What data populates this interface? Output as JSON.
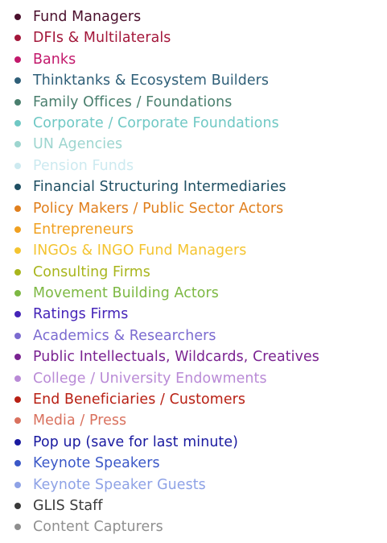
{
  "legend": {
    "items": [
      {
        "label": "Fund Managers",
        "color": "#4a0f2c"
      },
      {
        "label": "DFIs & Multilaterals",
        "color": "#a3173a"
      },
      {
        "label": "Banks",
        "color": "#c2186b"
      },
      {
        "label": "Thinktanks & Ecosystem Builders",
        "color": "#2f5f78"
      },
      {
        "label": "Family Offices / Foundations",
        "color": "#4a7f6e"
      },
      {
        "label": "Corporate / Corporate Foundations",
        "color": "#6fc8c4"
      },
      {
        "label": "UN Agencies",
        "color": "#9dd5cf"
      },
      {
        "label": "Pension Funds",
        "color": "#cdeaf0"
      },
      {
        "label": "Financial Structuring Intermediaries",
        "color": "#1f4f63"
      },
      {
        "label": "Policy Makers / Public Sector Actors",
        "color": "#e07f1d"
      },
      {
        "label": "Entrepreneurs",
        "color": "#f0a020"
      },
      {
        "label": "INGOs & INGO Fund Managers",
        "color": "#f4c430"
      },
      {
        "label": "Consulting Firms",
        "color": "#a8b51c"
      },
      {
        "label": "Movement Building Actors",
        "color": "#7db843"
      },
      {
        "label": "Ratings Firms",
        "color": "#4424b8"
      },
      {
        "label": "Academics & Researchers",
        "color": "#7b6bd0"
      },
      {
        "label": "Public Intellectuals, Wildcards, Creatives",
        "color": "#7a2391"
      },
      {
        "label": "College / University Endowments",
        "color": "#b98ad6"
      },
      {
        "label": "End Beneficiaries / Customers",
        "color": "#b82014"
      },
      {
        "label": "Media / Press",
        "color": "#d9715e"
      },
      {
        "label": "Pop up (save for last minute)",
        "color": "#1a1aa0"
      },
      {
        "label": "Keynote Speakers",
        "color": "#3b58c8"
      },
      {
        "label": "Keynote Speaker Guests",
        "color": "#8ea2e6"
      },
      {
        "label": "GLIS Staff",
        "color": "#3a3a3a"
      },
      {
        "label": "Content Capturers",
        "color": "#8f8f8f"
      }
    ]
  }
}
